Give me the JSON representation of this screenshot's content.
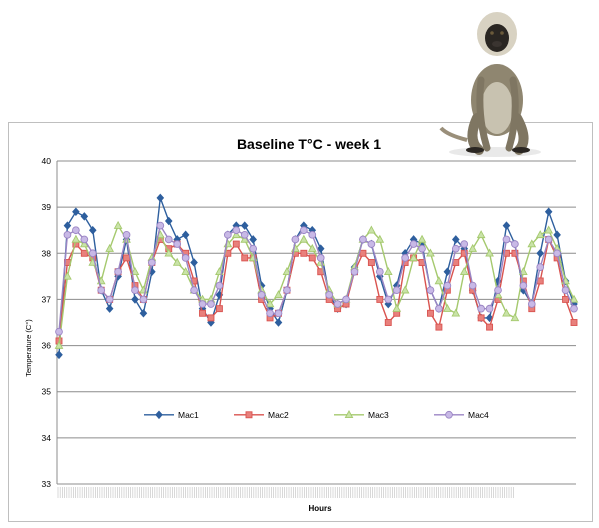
{
  "chart_data": {
    "type": "line",
    "title": "Baseline T°C  - week 1",
    "xlabel": "Hours",
    "ylabel": "Temperature (C°)",
    "ylim": [
      33,
      40
    ],
    "yticks": [
      33,
      34,
      35,
      36,
      37,
      38,
      39,
      40
    ],
    "grid": true,
    "legend_position": "bottom-inside",
    "series": [
      {
        "name": "Mac1",
        "color": "#2e5f9e",
        "marker": "diamond",
        "values": [
          35.8,
          38.6,
          38.9,
          38.8,
          38.5,
          37.2,
          36.8,
          37.5,
          38.3,
          37.0,
          36.7,
          37.6,
          39.2,
          38.7,
          38.3,
          38.4,
          37.8,
          36.8,
          36.5,
          37.1,
          38.4,
          38.6,
          38.6,
          38.3,
          37.3,
          36.8,
          36.5,
          37.2,
          38.3,
          38.6,
          38.5,
          38.1,
          37.1,
          36.8,
          36.9,
          37.7,
          38.3,
          38.2,
          37.5,
          36.9,
          37.3,
          38.0,
          38.3,
          38.2,
          37.2,
          36.8,
          37.6,
          38.3,
          38.1,
          37.2,
          36.6,
          36.6,
          37.4,
          38.6,
          38.2,
          37.2,
          36.9,
          38.0,
          38.9,
          38.4,
          37.4,
          36.9
        ]
      },
      {
        "name": "Mac2",
        "color": "#d9534f",
        "marker": "square",
        "values": [
          36.1,
          37.8,
          38.2,
          38.0,
          37.9,
          37.2,
          37.0,
          37.6,
          37.9,
          37.3,
          37.0,
          37.8,
          38.3,
          38.1,
          38.2,
          38.0,
          37.4,
          36.7,
          36.6,
          36.8,
          38.0,
          38.2,
          37.9,
          37.9,
          37.0,
          36.6,
          36.7,
          37.2,
          38.0,
          38.0,
          37.9,
          37.6,
          37.0,
          36.8,
          36.9,
          37.6,
          38.0,
          37.8,
          37.0,
          36.5,
          36.7,
          37.8,
          37.9,
          37.8,
          36.7,
          36.4,
          37.2,
          37.8,
          38.0,
          37.2,
          36.6,
          36.4,
          37.0,
          38.0,
          38.0,
          37.4,
          36.8,
          37.4,
          38.3,
          37.9,
          37.0,
          36.5
        ]
      },
      {
        "name": "Mac3",
        "color": "#a5c96e",
        "marker": "triangle",
        "values": [
          36.0,
          37.5,
          38.3,
          38.2,
          37.8,
          37.4,
          38.1,
          38.6,
          38.3,
          37.6,
          37.2,
          37.9,
          38.4,
          38.0,
          37.8,
          37.6,
          37.2,
          37.0,
          37.0,
          37.6,
          38.2,
          38.4,
          38.3,
          37.9,
          37.2,
          36.9,
          37.1,
          37.6,
          38.1,
          38.3,
          38.1,
          37.8,
          37.2,
          36.9,
          37.0,
          37.7,
          38.3,
          38.5,
          38.3,
          37.6,
          36.8,
          37.2,
          37.9,
          38.3,
          38.0,
          37.4,
          36.8,
          36.7,
          37.6,
          38.1,
          38.4,
          38.0,
          37.1,
          36.7,
          36.6,
          37.6,
          38.2,
          38.4,
          38.5,
          38.1,
          37.4,
          37.0
        ]
      },
      {
        "name": "Mac4",
        "color": "#9b85c4",
        "marker": "circle",
        "values": [
          36.3,
          38.4,
          38.5,
          38.3,
          38.0,
          37.2,
          37.0,
          37.6,
          38.4,
          37.2,
          37.0,
          37.8,
          38.6,
          38.3,
          38.2,
          37.9,
          37.2,
          36.9,
          36.9,
          37.3,
          38.4,
          38.5,
          38.4,
          38.1,
          37.1,
          36.7,
          36.7,
          37.2,
          38.3,
          38.5,
          38.4,
          37.9,
          37.1,
          36.9,
          37.0,
          37.6,
          38.3,
          38.2,
          37.6,
          37.0,
          37.2,
          37.9,
          38.2,
          38.1,
          37.2,
          36.8,
          37.3,
          38.1,
          38.2,
          37.3,
          36.8,
          36.8,
          37.2,
          38.3,
          38.2,
          37.3,
          36.9,
          37.7,
          38.3,
          38.0,
          37.2,
          36.8
        ]
      }
    ]
  }
}
